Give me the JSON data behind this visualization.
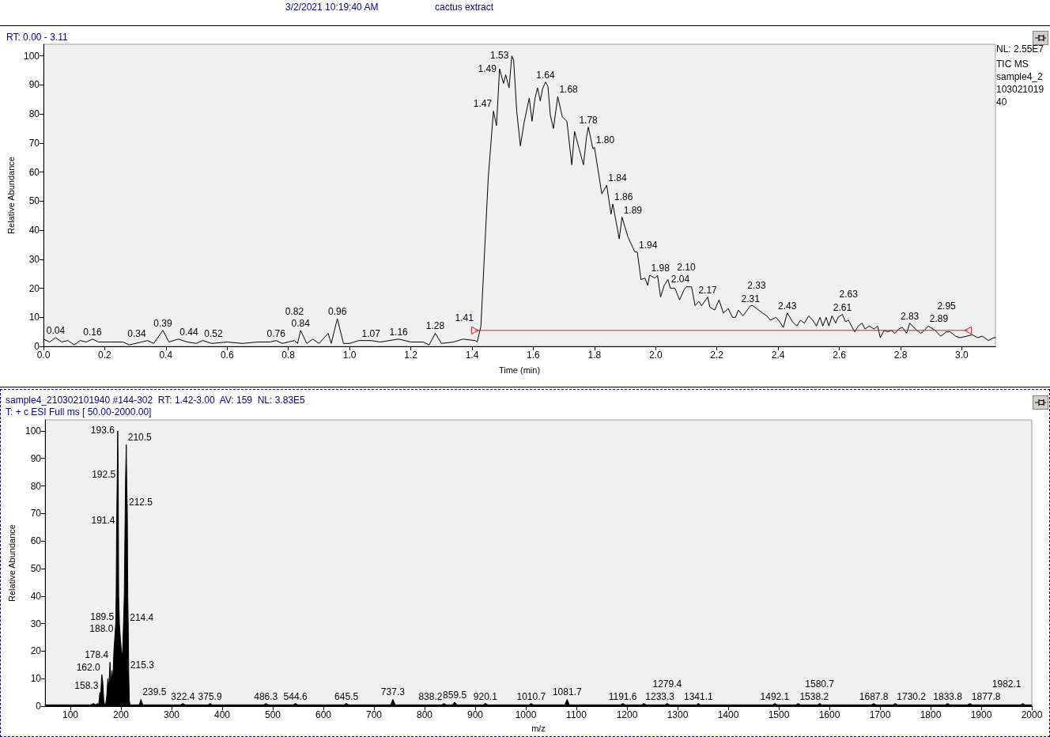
{
  "chart_data": [
    {
      "type": "line",
      "title": "cactus extract",
      "subtitle": "3/2/2021 10:19:40 AM",
      "xlabel": "Time (min)",
      "ylabel": "Relative Abundance",
      "marker": "none",
      "xlim": [
        0,
        3.11
      ],
      "ylim": [
        0,
        104
      ],
      "xticks": [
        {
          "value": 0,
          "label": "0.0"
        },
        0.2,
        0.4,
        0.6,
        0.8,
        {
          "value": 1,
          "label": "1.0"
        },
        1.2,
        1.4,
        1.6,
        1.8,
        {
          "value": 2,
          "label": "2.0"
        },
        2.2,
        2.4,
        2.6,
        2.8,
        {
          "value": 3,
          "label": "3.0"
        }
      ],
      "yticks": [
        0,
        10,
        20,
        30,
        40,
        50,
        60,
        70,
        80,
        90,
        100
      ],
      "series": [
        {
          "color": "#000000",
          "x": [
            0,
            0.02,
            0.04,
            0.06,
            0.08,
            0.1,
            0.12,
            0.14,
            0.16,
            0.18,
            0.22,
            0.26,
            0.28,
            0.32,
            0.34,
            0.36,
            0.39,
            0.41,
            0.44,
            0.47,
            0.5,
            0.52,
            0.55,
            0.6,
            0.65,
            0.7,
            0.74,
            0.76,
            0.78,
            0.8,
            0.82,
            0.83,
            0.84,
            0.86,
            0.88,
            0.9,
            0.93,
            0.94,
            0.96,
            0.98,
            1,
            1.03,
            1.07,
            1.1,
            1.16,
            1.2,
            1.24,
            1.26,
            1.28,
            1.3,
            1.34,
            1.37,
            1.41,
            1.417,
            1.429,
            1.441,
            1.453,
            1.47,
            1.48,
            1.49,
            1.503,
            1.51,
            1.521,
            1.53,
            1.536,
            1.546,
            1.558,
            1.57,
            1.587,
            1.596,
            1.606,
            1.614,
            1.623,
            1.63,
            1.64,
            1.648,
            1.656,
            1.666,
            1.68,
            1.695,
            1.71,
            1.726,
            1.735,
            1.75,
            1.764,
            1.774,
            1.78,
            1.795,
            1.8,
            1.824,
            1.84,
            1.854,
            1.86,
            1.881,
            1.89,
            1.91,
            1.932,
            1.94,
            1.952,
            1.965,
            1.974,
            1.98,
            1.998,
            2.006,
            2.016,
            2.028,
            2.04,
            2.048,
            2.063,
            2.078,
            2.093,
            2.1,
            2.117,
            2.129,
            2.141,
            2.15,
            2.17,
            2.177,
            2.193,
            2.207,
            2.221,
            2.237,
            2.251,
            2.261,
            2.27,
            2.285,
            2.31,
            2.317,
            2.33,
            2.349,
            2.363,
            2.375,
            2.393,
            2.405,
            2.417,
            2.43,
            2.447,
            2.461,
            2.473,
            2.486,
            2.5,
            2.513,
            2.525,
            2.537,
            2.546,
            2.557,
            2.566,
            2.576,
            2.588,
            2.596,
            2.61,
            2.62,
            2.63,
            2.65,
            2.662,
            2.674,
            2.684,
            2.698,
            2.713,
            2.725,
            2.734,
            2.746,
            2.758,
            2.77,
            2.782,
            2.794,
            2.806,
            2.82,
            2.83,
            2.848,
            2.866,
            2.878,
            2.89,
            2.913,
            2.931,
            2.95,
            2.962,
            2.98,
            2.995,
            3.016,
            3.034,
            3.052,
            3.067,
            3.087,
            3.105,
            3.11
          ],
          "values": [
            2.5,
            1.5,
            3,
            1.5,
            2,
            0.5,
            2,
            1.5,
            2.5,
            1.5,
            1.5,
            1.5,
            0.5,
            1.5,
            2,
            1,
            5.5,
            1.5,
            2.5,
            1.5,
            1,
            2,
            1,
            1.5,
            1,
            1.5,
            1.5,
            2,
            1,
            1.5,
            2,
            1,
            5.5,
            1,
            2.5,
            1,
            4.5,
            1,
            9.5,
            1,
            1,
            2,
            2,
            1.5,
            2.5,
            1.5,
            1.5,
            0.5,
            4.5,
            1,
            1.5,
            2.5,
            2,
            1.5,
            7,
            32.5,
            58,
            81,
            76,
            95.5,
            90.5,
            93.5,
            89,
            100,
            98.5,
            81,
            69,
            77,
            85.5,
            77.5,
            85.5,
            89,
            84.5,
            88.5,
            91,
            89.5,
            79.5,
            75,
            86,
            79,
            77.5,
            62.5,
            74,
            68,
            62.5,
            72,
            75.5,
            68,
            68.5,
            52.5,
            55.5,
            45.5,
            49,
            37,
            44.5,
            37.5,
            32.5,
            32.5,
            23,
            23.5,
            21,
            24.5,
            23.5,
            24.5,
            17,
            21,
            23,
            20,
            20,
            16,
            19.5,
            20.5,
            20.5,
            14,
            15.5,
            14,
            17,
            13.5,
            12.5,
            16,
            11.5,
            13,
            10,
            10,
            12.5,
            10.5,
            14,
            14,
            13,
            11.5,
            10.5,
            9,
            10,
            8.5,
            6.5,
            11.5,
            8.5,
            7,
            9,
            8,
            10.5,
            9,
            7,
            10,
            7,
            10,
            7,
            10.5,
            8,
            10,
            11,
            8.5,
            9,
            5,
            7,
            8,
            6,
            7,
            6,
            7,
            3,
            5.5,
            5,
            5.5,
            4.5,
            6,
            6.5,
            4.5,
            8,
            6,
            4.5,
            5.5,
            7,
            5.5,
            3.5,
            5,
            5,
            3.5,
            3,
            3.5,
            4,
            3,
            3.5,
            2,
            3,
            3
          ]
        },
        {
          "color": "#d42020",
          "marker": "triangle",
          "x": [
            1.41,
            3.02
          ],
          "values": [
            5.5,
            5.5
          ]
        }
      ],
      "annotations": [
        "RT: 0.00 - 3.11",
        "NL: 2.55E7",
        "TIC MS sample4_210302101940",
        {
          "text": "0.04",
          "x": 0.04,
          "y": 3
        },
        {
          "text": "0.16",
          "x": 0.16,
          "y": 2.5
        },
        {
          "text": "0.34",
          "x": 0.34,
          "y": 2
        },
        {
          "text": "0.39",
          "x": 0.39,
          "y": 5.5
        },
        {
          "text": "0.44",
          "x": 0.44,
          "y": 2.5
        },
        {
          "text": "0.52",
          "x": 0.52,
          "y": 2
        },
        {
          "text": "0.76",
          "x": 0.76,
          "y": 2
        },
        {
          "text": "0.82",
          "x": 0.82,
          "y": 2
        },
        {
          "text": "0.84",
          "x": 0.84,
          "y": 5.5
        },
        {
          "text": "0.96",
          "x": 0.96,
          "y": 9.5
        },
        {
          "text": "1.07",
          "x": 1.07,
          "y": 2
        },
        {
          "text": "1.16",
          "x": 1.16,
          "y": 2.5
        },
        {
          "text": "1.28",
          "x": 1.28,
          "y": 4.5
        },
        {
          "text": "1.41",
          "x": 1.41,
          "y": 2
        },
        {
          "text": "1.47",
          "x": 1.47,
          "y": 81
        },
        {
          "text": "1.49",
          "x": 1.49,
          "y": 95.5
        },
        {
          "text": "1.53",
          "x": 1.53,
          "y": 100
        },
        {
          "text": "1.64",
          "x": 1.64,
          "y": 91
        },
        {
          "text": "1.68",
          "x": 1.68,
          "y": 86
        },
        {
          "text": "1.78",
          "x": 1.78,
          "y": 75.5
        },
        {
          "text": "1.80",
          "x": 1.8,
          "y": 68.5
        },
        {
          "text": "1.84",
          "x": 1.84,
          "y": 55.5
        },
        {
          "text": "1.86",
          "x": 1.86,
          "y": 49
        },
        {
          "text": "1.89",
          "x": 1.89,
          "y": 44.5
        },
        {
          "text": "1.94",
          "x": 1.94,
          "y": 32.5
        },
        {
          "text": "1.98",
          "x": 1.98,
          "y": 24.5
        },
        {
          "text": "2.04",
          "x": 2.04,
          "y": 23
        },
        {
          "text": "2.10",
          "x": 2.1,
          "y": 20.5
        },
        {
          "text": "2.17",
          "x": 2.17,
          "y": 17
        },
        {
          "text": "2.31",
          "x": 2.31,
          "y": 14
        },
        {
          "text": "2.33",
          "x": 2.33,
          "y": 13
        },
        {
          "text": "2.43",
          "x": 2.43,
          "y": 11.5
        },
        {
          "text": "2.61",
          "x": 2.61,
          "y": 11
        },
        {
          "text": "2.63",
          "x": 2.63,
          "y": 9
        },
        {
          "text": "2.83",
          "x": 2.83,
          "y": 8
        },
        {
          "text": "2.89",
          "x": 2.89,
          "y": 7
        },
        {
          "text": "2.95",
          "x": 2.95,
          "y": 5
        }
      ]
    },
    {
      "type": "area",
      "title": "sample4_210302101940 #144-302  RT: 1.42-3.00  AV: 159  NL: 3.83E5",
      "subtitle": "T: + c ESI Full ms [ 50.00-2000.00]",
      "xlabel": "m/z",
      "ylabel": "Relative Abundance",
      "marker": "none",
      "xlim": [
        50,
        2000
      ],
      "ylim": [
        0,
        104
      ],
      "xticks": [
        100,
        200,
        300,
        400,
        500,
        600,
        700,
        800,
        900,
        1000,
        1100,
        1200,
        1300,
        1400,
        1500,
        1600,
        1700,
        1800,
        1900,
        2000
      ],
      "yticks": [
        0,
        10,
        20,
        30,
        40,
        50,
        60,
        70,
        80,
        90,
        100
      ],
      "series": [
        {
          "color": "#000000",
          "x": [
            50,
            140,
            146,
            150,
            154,
            156,
            158.3,
            160,
            162,
            164,
            166,
            168,
            170,
            172,
            174,
            176,
            178.4,
            180,
            182,
            184,
            186,
            188,
            189.5,
            190.5,
            191.4,
            192.5,
            193.6,
            194.5,
            195.5,
            197,
            199,
            201,
            203,
            205,
            206.5,
            207.5,
            209,
            210.5,
            211.5,
            212.5,
            213.5,
            214.4,
            215.3,
            216.5,
            218,
            236,
            239.5,
            243,
            318,
            322.4,
            327,
            372,
            375.9,
            380,
            482,
            486.3,
            491,
            540,
            544.6,
            549,
            641,
            645.5,
            650,
            733,
            737.3,
            742,
            834,
            838.2,
            843,
            855,
            859.5,
            864,
            916,
            920.1,
            925,
            1006,
            1010.7,
            1015,
            1077,
            1081.7,
            1086,
            1187,
            1191.6,
            1196,
            1229,
            1233.3,
            1238,
            1275,
            1279.4,
            1284,
            1337,
            1341.1,
            1346,
            1488,
            1492.1,
            1497,
            1534,
            1538.2,
            1543,
            1576,
            1580.7,
            1585,
            1683,
            1687.8,
            1692,
            1726,
            1730.2,
            1735,
            1829,
            1833.8,
            1838,
            1873,
            1877.8,
            1882,
            1978,
            1982.1,
            1986,
            2000
          ],
          "values": [
            0.5,
            0.5,
            1,
            0.5,
            1,
            0.5,
            5,
            4,
            11.5,
            9,
            2,
            0.5,
            1,
            4,
            10,
            7,
            16,
            8,
            13,
            10,
            20,
            25.5,
            30,
            40,
            65,
            81.5,
            100,
            86,
            40,
            30,
            24,
            20,
            18.5,
            30,
            40,
            57,
            82,
            95,
            80,
            71.5,
            40,
            29.5,
            12.5,
            2,
            0.5,
            0.5,
            2.5,
            0.5,
            0.5,
            1,
            0.5,
            0.5,
            1,
            0.5,
            0.5,
            1,
            0.5,
            0.5,
            1,
            0.5,
            0.5,
            1,
            0.5,
            0.5,
            2.5,
            0.5,
            0.5,
            1,
            0.5,
            0.5,
            1.5,
            0.5,
            0.5,
            1,
            0.5,
            0.5,
            1,
            0.5,
            0.5,
            2.5,
            0.5,
            0.5,
            1,
            0.5,
            0.5,
            1,
            0.5,
            0.5,
            1,
            0.5,
            0.5,
            1,
            0.5,
            0.5,
            1,
            0.5,
            0.5,
            1,
            0.5,
            0.5,
            1,
            0.5,
            0.5,
            1,
            0.5,
            0.5,
            1,
            0.5,
            0.5,
            1,
            0.5,
            0.5,
            1,
            0.5,
            0.5,
            1,
            0.5,
            0.5
          ]
        }
      ],
      "annotations": [
        {
          "text": "193.6",
          "x": 193.6,
          "y": 100
        },
        {
          "text": "210.5",
          "x": 210.5,
          "y": 95
        },
        {
          "text": "192.5",
          "x": 192.5,
          "y": 81.5
        },
        {
          "text": "212.5",
          "x": 212.5,
          "y": 71.5
        },
        {
          "text": "191.4",
          "x": 191.4,
          "y": 65
        },
        {
          "text": "189.5",
          "x": 189.5,
          "y": 30
        },
        {
          "text": "214.4",
          "x": 214.4,
          "y": 29.5
        },
        {
          "text": "188.0",
          "x": 188,
          "y": 25.5
        },
        {
          "text": "178.4",
          "x": 178.4,
          "y": 16
        },
        {
          "text": "215.3",
          "x": 215.3,
          "y": 12.5
        },
        {
          "text": "162.0",
          "x": 162,
          "y": 11.5
        },
        {
          "text": "158.3",
          "x": 158.3,
          "y": 5
        },
        {
          "text": "239.5",
          "x": 239.5,
          "y": 2.5
        },
        {
          "text": "322.4",
          "x": 322.4,
          "y": 1
        },
        {
          "text": "375.9",
          "x": 375.9,
          "y": 1
        },
        {
          "text": "486.3",
          "x": 486.3,
          "y": 1
        },
        {
          "text": "544.6",
          "x": 544.6,
          "y": 1
        },
        {
          "text": "645.5",
          "x": 645.5,
          "y": 1
        },
        {
          "text": "737.3",
          "x": 737.3,
          "y": 2.5
        },
        {
          "text": "838.2",
          "x": 838.2,
          "y": 1
        },
        {
          "text": "859.5",
          "x": 859.5,
          "y": 1.5
        },
        {
          "text": "920.1",
          "x": 920.1,
          "y": 1
        },
        {
          "text": "1010.7",
          "x": 1010.7,
          "y": 1
        },
        {
          "text": "1081.7",
          "x": 1081.7,
          "y": 2.5
        },
        {
          "text": "1191.6",
          "x": 1191.6,
          "y": 1
        },
        {
          "text": "1233.3",
          "x": 1233.3,
          "y": 1
        },
        {
          "text": "1279.4",
          "x": 1279.4,
          "y": 1
        },
        {
          "text": "1341.1",
          "x": 1341.1,
          "y": 1
        },
        {
          "text": "1492.1",
          "x": 1492.1,
          "y": 1
        },
        {
          "text": "1538.2",
          "x": 1538.2,
          "y": 1
        },
        {
          "text": "1580.7",
          "x": 1580.7,
          "y": 1
        },
        {
          "text": "1687.8",
          "x": 1687.8,
          "y": 1
        },
        {
          "text": "1730.2",
          "x": 1730.2,
          "y": 1
        },
        {
          "text": "1833.8",
          "x": 1833.8,
          "y": 1
        },
        {
          "text": "1877.8",
          "x": 1877.8,
          "y": 1
        },
        {
          "text": "1982.1",
          "x": 1982.1,
          "y": 1
        }
      ]
    }
  ]
}
